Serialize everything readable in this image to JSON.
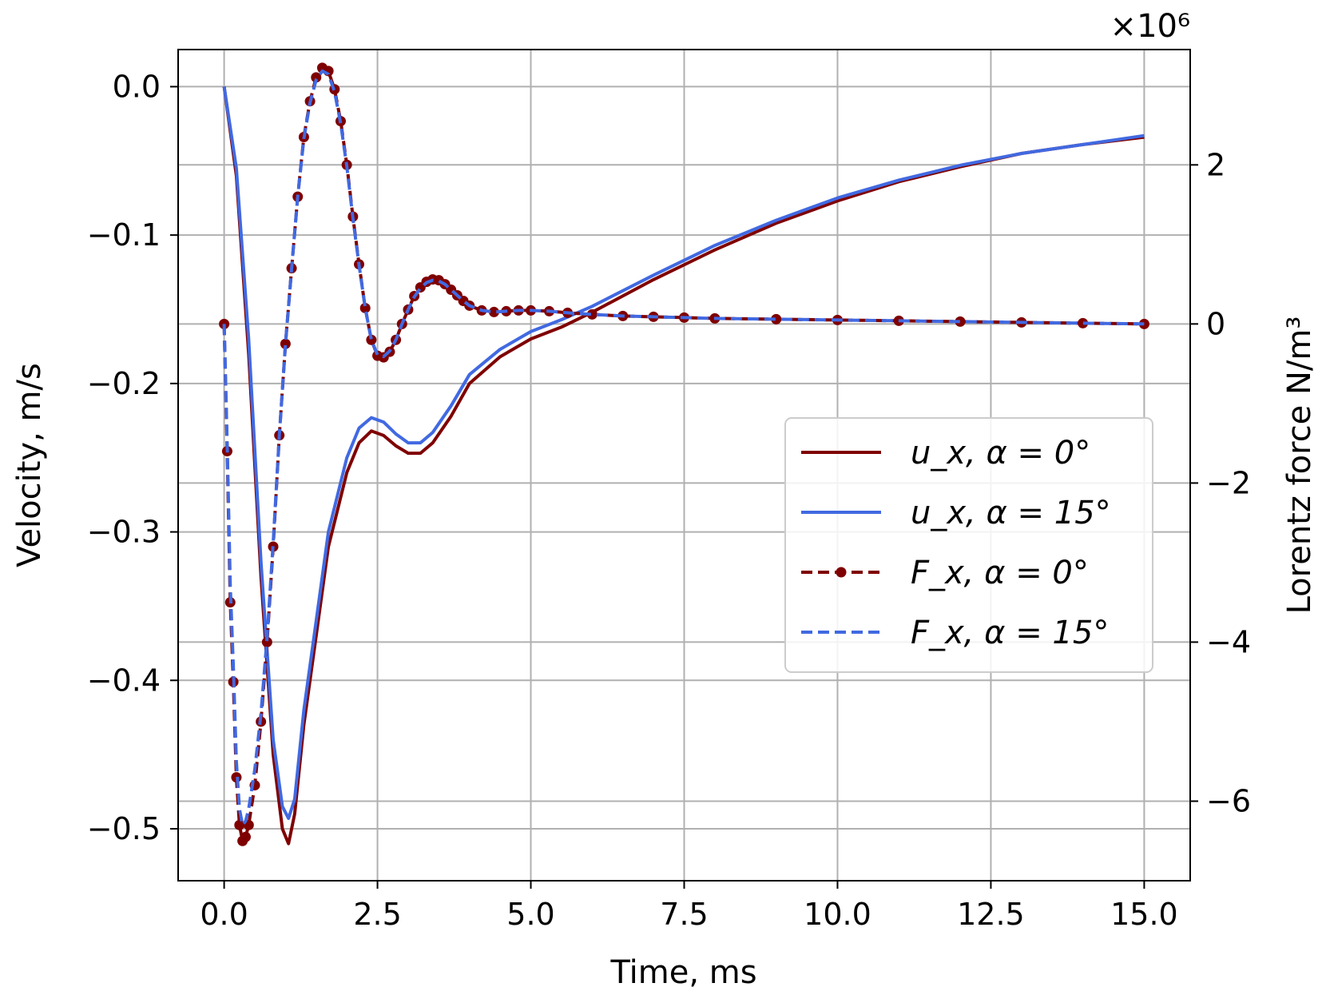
{
  "chart_data": {
    "type": "line",
    "xlabel": "Time, ms",
    "ylabel": "Velocity, m/s",
    "y2label": "Lorentz force N/m³",
    "y2_multiplier_label": "×10⁶",
    "xlim": [
      -0.75,
      15.75
    ],
    "ylim": [
      -0.535,
      0.025
    ],
    "y2lim": [
      -7.0,
      3.45
    ],
    "y2_scale": 1000000,
    "xticks": [
      "0.0",
      "2.5",
      "5.0",
      "7.5",
      "10.0",
      "12.5",
      "15.0"
    ],
    "yticks": [
      "0.0",
      "−0.1",
      "−0.2",
      "−0.3",
      "−0.4",
      "−0.5"
    ],
    "y2ticks": [
      "2",
      "0",
      "−2",
      "−4",
      "−6"
    ],
    "grid": true,
    "legend_position": "center-right",
    "series": [
      {
        "name": "u_x, α = 0°",
        "axis": "left",
        "color": "#7f0000",
        "style": "solid",
        "x": [
          0,
          0.2,
          0.4,
          0.6,
          0.8,
          0.95,
          1.05,
          1.15,
          1.3,
          1.5,
          1.7,
          2.0,
          2.2,
          2.4,
          2.6,
          2.8,
          3.0,
          3.2,
          3.4,
          3.7,
          4.0,
          4.5,
          5.0,
          5.5,
          6.0,
          7.0,
          8.0,
          9.0,
          10.0,
          11.0,
          12.0,
          13.0,
          14.0,
          15.0
        ],
        "y": [
          0.0,
          -0.06,
          -0.18,
          -0.33,
          -0.45,
          -0.5,
          -0.51,
          -0.49,
          -0.43,
          -0.37,
          -0.31,
          -0.26,
          -0.24,
          -0.232,
          -0.235,
          -0.242,
          -0.247,
          -0.247,
          -0.24,
          -0.222,
          -0.2,
          -0.182,
          -0.17,
          -0.162,
          -0.152,
          -0.13,
          -0.11,
          -0.092,
          -0.077,
          -0.064,
          -0.054,
          -0.045,
          -0.039,
          -0.034
        ]
      },
      {
        "name": "u_x, α = 15°",
        "axis": "left",
        "color": "#4169e1",
        "style": "solid",
        "x": [
          0,
          0.2,
          0.4,
          0.6,
          0.8,
          0.95,
          1.05,
          1.15,
          1.3,
          1.5,
          1.7,
          2.0,
          2.2,
          2.4,
          2.6,
          2.8,
          3.0,
          3.2,
          3.4,
          3.7,
          4.0,
          4.5,
          5.0,
          5.5,
          6.0,
          7.0,
          8.0,
          9.0,
          10.0,
          11.0,
          12.0,
          13.0,
          14.0,
          15.0
        ],
        "y": [
          0.0,
          -0.055,
          -0.17,
          -0.32,
          -0.44,
          -0.485,
          -0.493,
          -0.48,
          -0.42,
          -0.36,
          -0.3,
          -0.25,
          -0.23,
          -0.223,
          -0.226,
          -0.234,
          -0.24,
          -0.24,
          -0.233,
          -0.215,
          -0.194,
          -0.177,
          -0.165,
          -0.157,
          -0.148,
          -0.127,
          -0.107,
          -0.09,
          -0.075,
          -0.063,
          -0.053,
          -0.045,
          -0.039,
          -0.033
        ]
      },
      {
        "name": "F_x, α = 0°",
        "axis": "right",
        "color": "#7f0000",
        "style": "dashed-dotted-markers",
        "x": [
          0,
          0.05,
          0.1,
          0.15,
          0.2,
          0.25,
          0.3,
          0.35,
          0.4,
          0.5,
          0.6,
          0.7,
          0.8,
          0.9,
          1.0,
          1.1,
          1.2,
          1.3,
          1.4,
          1.5,
          1.6,
          1.7,
          1.8,
          1.9,
          2.0,
          2.1,
          2.2,
          2.3,
          2.4,
          2.5,
          2.6,
          2.7,
          2.8,
          2.9,
          3.0,
          3.1,
          3.2,
          3.3,
          3.4,
          3.5,
          3.6,
          3.7,
          3.8,
          3.9,
          4.0,
          4.2,
          4.4,
          4.6,
          4.8,
          5.0,
          5.3,
          5.6,
          6.0,
          6.5,
          7.0,
          7.5,
          8.0,
          9.0,
          10.0,
          11.0,
          12.0,
          13.0,
          14.0,
          15.0
        ],
        "y": [
          0.0,
          -1.6,
          -3.5,
          -4.5,
          -5.7,
          -6.3,
          -6.5,
          -6.45,
          -6.3,
          -5.8,
          -5.0,
          -4.0,
          -2.8,
          -1.4,
          -0.25,
          0.7,
          1.6,
          2.35,
          2.8,
          3.1,
          3.22,
          3.18,
          2.95,
          2.55,
          2.0,
          1.35,
          0.75,
          0.2,
          -0.2,
          -0.4,
          -0.42,
          -0.35,
          -0.2,
          0.0,
          0.18,
          0.35,
          0.46,
          0.53,
          0.56,
          0.55,
          0.5,
          0.43,
          0.36,
          0.29,
          0.23,
          0.17,
          0.15,
          0.16,
          0.17,
          0.17,
          0.16,
          0.14,
          0.12,
          0.1,
          0.09,
          0.08,
          0.07,
          0.06,
          0.05,
          0.04,
          0.03,
          0.02,
          0.01,
          0.0
        ]
      },
      {
        "name": "F_x, α = 15°",
        "axis": "right",
        "color": "#4169e1",
        "style": "dashed",
        "x": [
          0,
          0.05,
          0.1,
          0.15,
          0.2,
          0.25,
          0.3,
          0.35,
          0.4,
          0.5,
          0.6,
          0.7,
          0.8,
          0.9,
          1.0,
          1.1,
          1.2,
          1.3,
          1.4,
          1.5,
          1.6,
          1.7,
          1.8,
          1.9,
          2.0,
          2.1,
          2.2,
          2.3,
          2.4,
          2.5,
          2.6,
          2.7,
          2.8,
          2.9,
          3.0,
          3.1,
          3.2,
          3.3,
          3.4,
          3.5,
          3.6,
          3.7,
          3.8,
          3.9,
          4.0,
          4.2,
          4.4,
          4.6,
          4.8,
          5.0,
          5.3,
          5.6,
          6.0,
          6.5,
          7.0,
          7.5,
          8.0,
          9.0,
          10.0,
          11.0,
          12.0,
          13.0,
          14.0,
          15.0
        ],
        "y": [
          0.0,
          -1.5,
          -3.3,
          -4.3,
          -5.5,
          -6.1,
          -6.3,
          -6.25,
          -6.1,
          -5.6,
          -4.9,
          -3.95,
          -2.75,
          -1.4,
          -0.25,
          0.7,
          1.6,
          2.33,
          2.78,
          3.07,
          3.18,
          3.14,
          2.92,
          2.52,
          1.98,
          1.33,
          0.74,
          0.2,
          -0.2,
          -0.39,
          -0.41,
          -0.34,
          -0.2,
          0.0,
          0.18,
          0.34,
          0.45,
          0.52,
          0.55,
          0.54,
          0.5,
          0.43,
          0.36,
          0.29,
          0.23,
          0.17,
          0.15,
          0.16,
          0.17,
          0.17,
          0.16,
          0.14,
          0.12,
          0.1,
          0.09,
          0.08,
          0.07,
          0.06,
          0.05,
          0.04,
          0.03,
          0.02,
          0.01,
          0.0
        ]
      }
    ]
  }
}
